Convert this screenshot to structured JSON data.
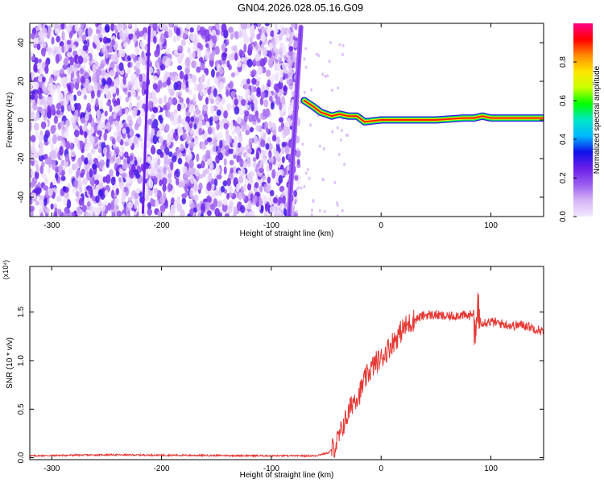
{
  "title": "GN04.2026.028.05.16.G09",
  "chart_data": [
    {
      "type": "heatmap",
      "xlabel": "Height of straight line (km)",
      "ylabel": "Frequency (Hz)",
      "xlim": [
        -320,
        148
      ],
      "ylim": [
        -50,
        50
      ],
      "xticks": [
        -300,
        -200,
        -100,
        0,
        100
      ],
      "yticks": [
        -40,
        -20,
        0,
        20,
        40
      ],
      "colorbar": {
        "label": "Normalized spectral amplitude",
        "range": [
          0,
          1
        ],
        "ticks": [
          "0.0",
          "0.2",
          "0.4",
          "0.6",
          "0.8"
        ],
        "colormap": [
          "#f3e8ff",
          "#d6b5f5",
          "#9a5cf0",
          "#6a1fe8",
          "#1010e8",
          "#00b7ff",
          "#00e6c8",
          "#00ff00",
          "#c8ff00",
          "#ffe600",
          "#ff8c00",
          "#ff0000",
          "#ff0088"
        ]
      },
      "features": [
        {
          "name": "signal-track",
          "height_km": [
            -70,
            -62,
            -55,
            -45,
            -38,
            -30,
            -22,
            -15,
            0,
            20,
            50,
            75,
            85,
            92,
            100,
            148
          ],
          "frequency_hz": [
            10,
            7,
            4,
            2,
            3,
            2,
            2,
            -1,
            0,
            0,
            0,
            1,
            1,
            2,
            1,
            1
          ]
        },
        {
          "name": "vertical-streak",
          "height_km": [
            -84,
            -73
          ],
          "frequency_hz": [
            -50,
            48
          ]
        },
        {
          "name": "faint-streak",
          "height_km": [
            -217,
            -211
          ],
          "frequency_hz": [
            -48,
            48
          ]
        },
        {
          "name": "noise-region",
          "height_km": [
            -320,
            -75
          ],
          "frequency_hz": [
            -50,
            50
          ]
        }
      ]
    },
    {
      "type": "line",
      "xlabel": "Height of straight line (km)",
      "ylabel": "SNR (10 * v/v)",
      "scale_note": "(x10⁴)",
      "xlim": [
        -320,
        148
      ],
      "ylim": [
        -0.02,
        1.97
      ],
      "xticks": [
        -300,
        -200,
        -100,
        0,
        100
      ],
      "yticks": [
        "0.0",
        "0.5",
        "1.0",
        "1.5"
      ],
      "series": [
        {
          "color": "#e53935",
          "x": [
            -320,
            -250,
            -180,
            -100,
            -60,
            -48,
            -42,
            -38,
            -34,
            -30,
            -25,
            -20,
            -15,
            -10,
            -5,
            0,
            5,
            10,
            15,
            20,
            30,
            40,
            50,
            60,
            70,
            80,
            84,
            86,
            88,
            92,
            100,
            110,
            120,
            130,
            140,
            148
          ],
          "y": [
            0.02,
            0.03,
            0.025,
            0.02,
            0.02,
            0.05,
            0.12,
            0.22,
            0.35,
            0.45,
            0.6,
            0.65,
            0.8,
            0.9,
            0.98,
            1.02,
            1.1,
            1.18,
            1.25,
            1.33,
            1.42,
            1.47,
            1.47,
            1.45,
            1.47,
            1.46,
            1.5,
            1.2,
            1.44,
            1.4,
            1.4,
            1.38,
            1.36,
            1.37,
            1.33,
            1.3
          ]
        }
      ]
    }
  ]
}
